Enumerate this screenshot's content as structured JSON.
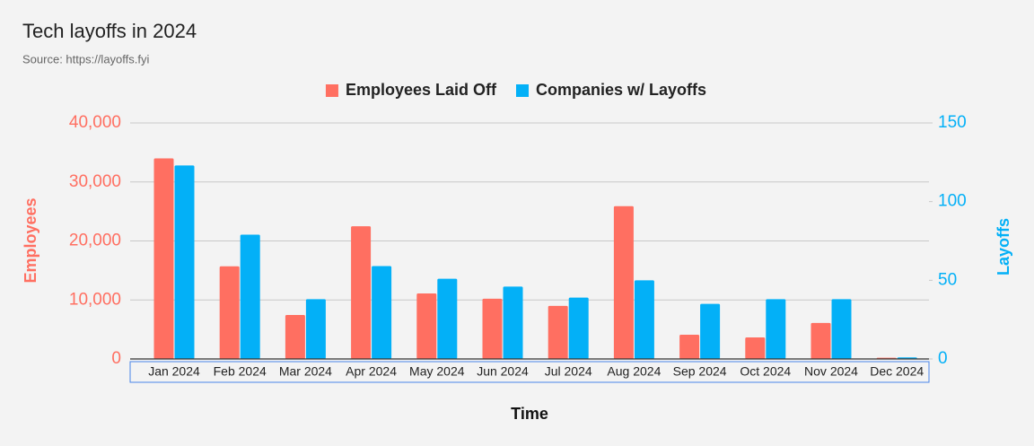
{
  "chart_data": {
    "type": "bar",
    "title": "Tech layoffs in 2024",
    "subtitle": "Source: https://layoffs.fyi",
    "x_label": "Time",
    "y_label": "Employees",
    "y2_label": "Layoffs",
    "categories": [
      "Jan 2024",
      "Feb 2024",
      "Mar 2024",
      "Apr 2024",
      "May 2024",
      "Jun 2024",
      "Jul 2024",
      "Aug 2024",
      "Sep 2024",
      "Oct 2024",
      "Nov 2024",
      "Dec 2024"
    ],
    "series": [
      {
        "name": "Employees Laid Off",
        "color": "#ff6f61",
        "values": [
          34000,
          15700,
          7450,
          22500,
          11100,
          10200,
          9000,
          25900,
          4100,
          3650,
          6100,
          200
        ]
      },
      {
        "name": "Companies w/ Layoffs",
        "color": "#03b0f7",
        "axis": "y2",
        "values": [
          123,
          79,
          38,
          59,
          51,
          46,
          39,
          50,
          35,
          38,
          38,
          1
        ]
      }
    ],
    "ylim": [
      0,
      40000
    ],
    "yticks": [
      0,
      {
        "value": 10000,
        "label": "10,000"
      },
      {
        "value": 20000,
        "label": "20,000"
      },
      {
        "value": 30000,
        "label": "30,000"
      },
      {
        "value": 40000,
        "label": "40,000"
      }
    ],
    "y2lim": [
      0,
      150
    ],
    "y2ticks": [
      0,
      50,
      100,
      150
    ],
    "grid": true,
    "legend": "top"
  }
}
